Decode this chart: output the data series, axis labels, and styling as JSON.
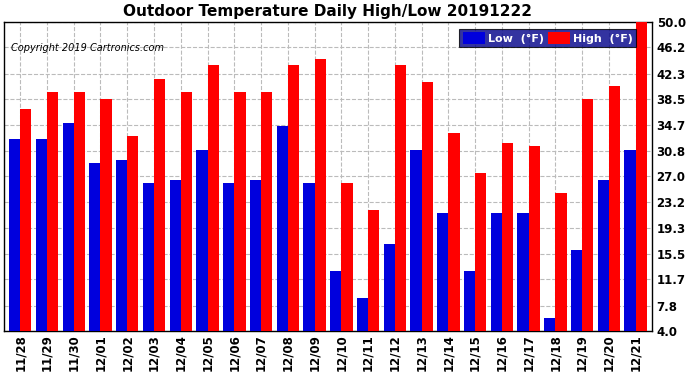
{
  "title": "Outdoor Temperature Daily High/Low 20191222",
  "copyright": "Copyright 2019 Cartronics.com",
  "categories": [
    "11/28",
    "11/29",
    "11/30",
    "12/01",
    "12/02",
    "12/03",
    "12/04",
    "12/05",
    "12/06",
    "12/07",
    "12/08",
    "12/09",
    "12/10",
    "12/11",
    "12/12",
    "12/13",
    "12/14",
    "12/15",
    "12/16",
    "12/17",
    "12/18",
    "12/19",
    "12/20",
    "12/21"
  ],
  "high_values": [
    37.0,
    39.5,
    39.5,
    38.5,
    33.0,
    41.5,
    39.5,
    43.5,
    39.5,
    39.5,
    43.5,
    44.5,
    26.0,
    22.0,
    43.5,
    41.0,
    33.5,
    27.5,
    32.0,
    31.5,
    24.5,
    38.5,
    40.5,
    50.0
  ],
  "low_values": [
    32.5,
    32.5,
    35.0,
    29.0,
    29.5,
    26.0,
    26.5,
    31.0,
    26.0,
    26.5,
    34.5,
    26.0,
    13.0,
    9.0,
    17.0,
    31.0,
    21.5,
    13.0,
    21.5,
    21.5,
    6.0,
    16.0,
    26.5,
    31.0
  ],
  "high_color": "#ff0000",
  "low_color": "#0000dd",
  "background_color": "#ffffff",
  "plot_bg_color": "#ffffff",
  "grid_color": "#bbbbbb",
  "ylim_min": 4.0,
  "ylim_max": 50.0,
  "yticks": [
    4.0,
    7.8,
    11.7,
    15.5,
    19.3,
    23.2,
    27.0,
    30.8,
    34.7,
    38.5,
    42.3,
    46.2,
    50.0
  ],
  "bar_width": 0.42,
  "title_fontsize": 11,
  "tick_fontsize": 8.5,
  "legend_label_low": "Low  (°F)",
  "legend_label_high": "High  (°F)"
}
